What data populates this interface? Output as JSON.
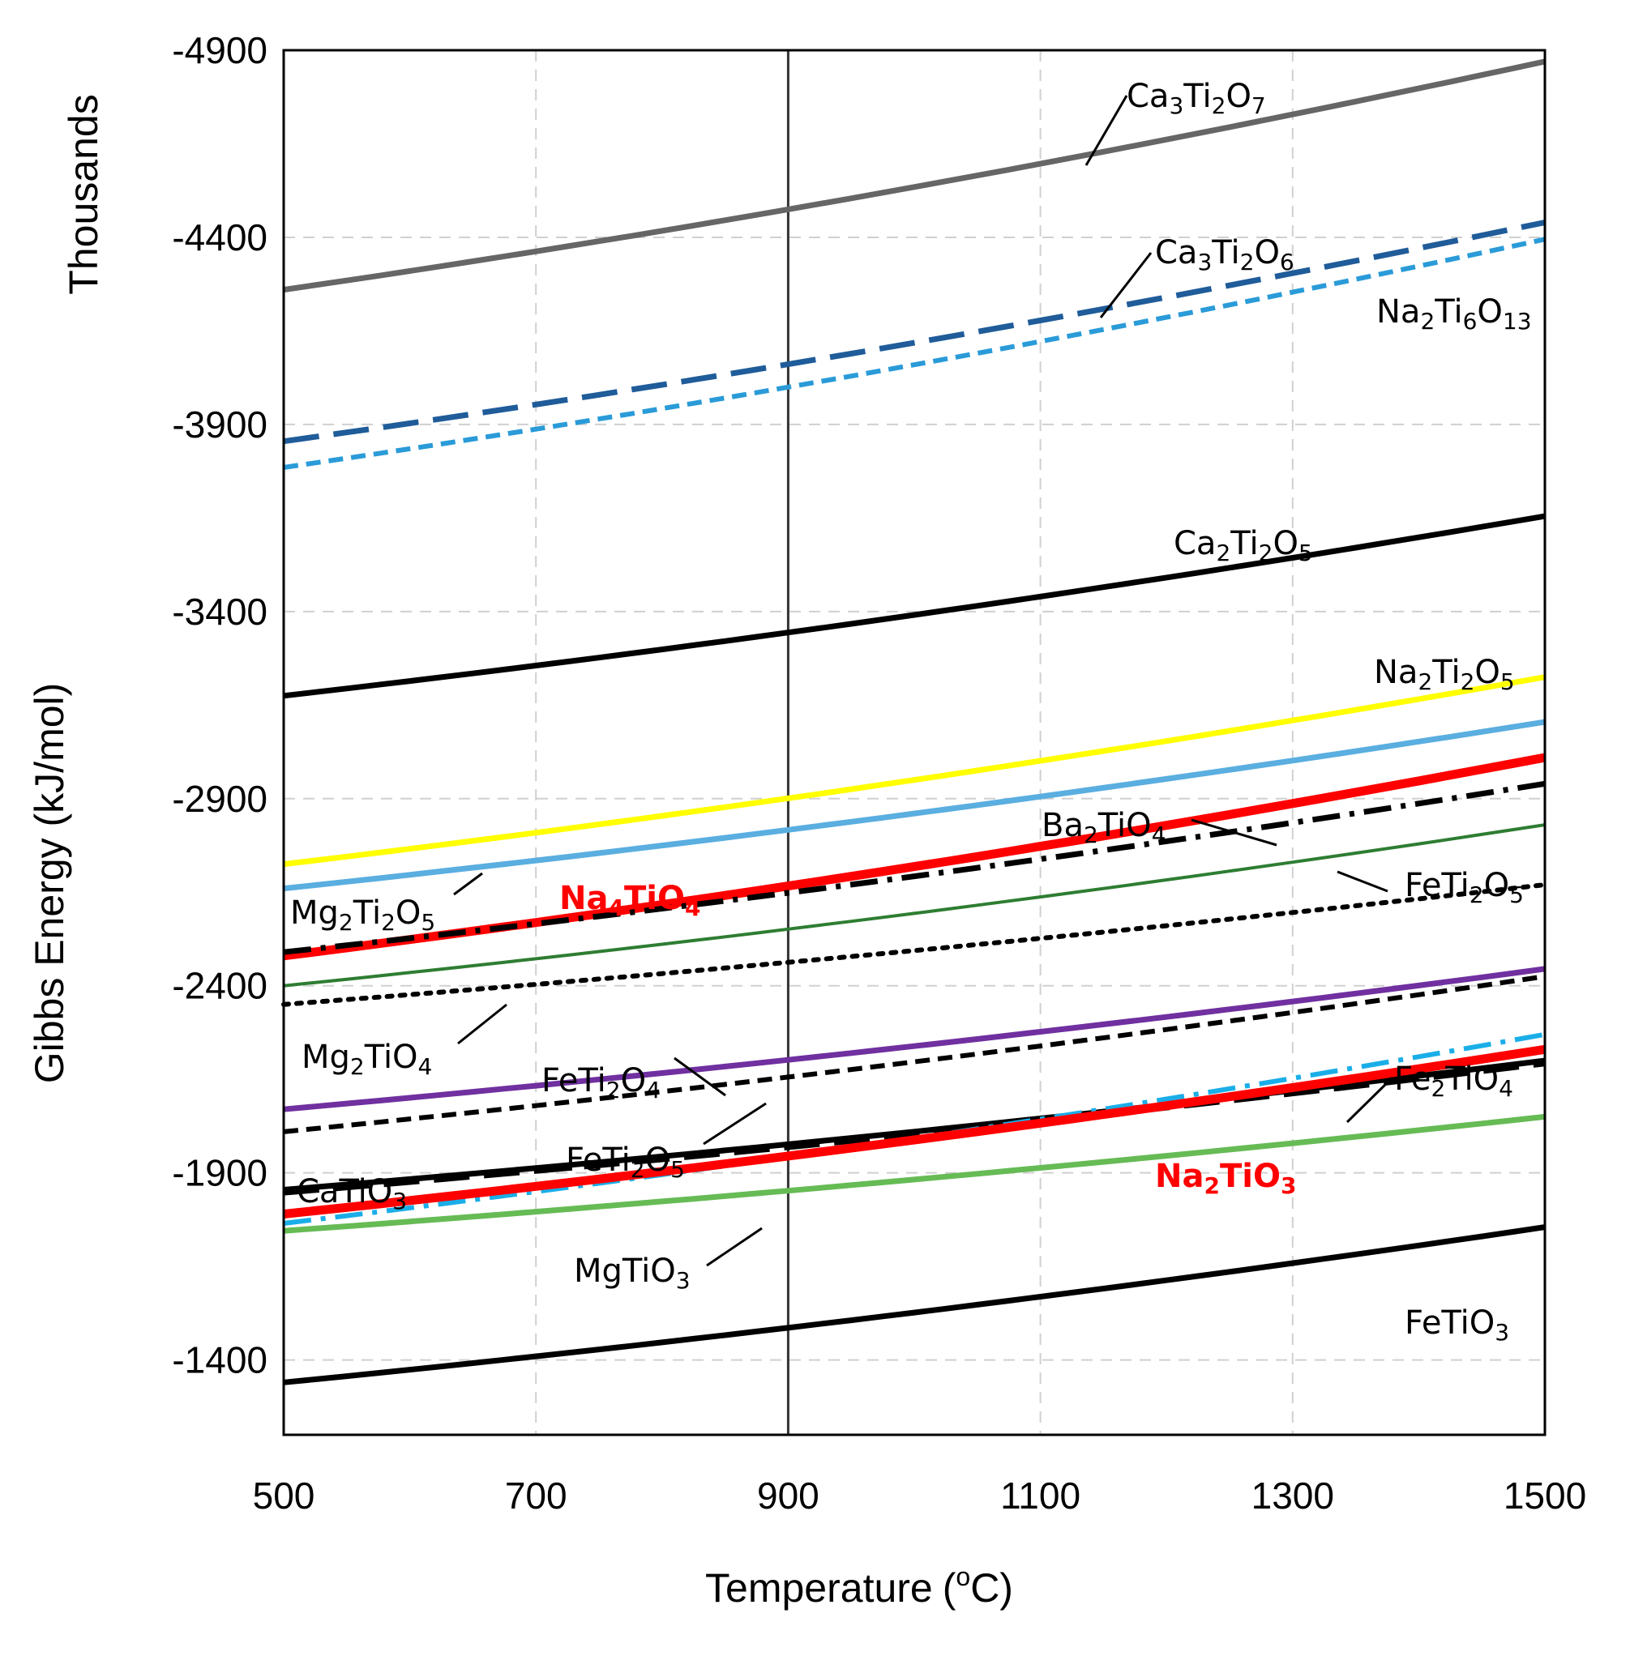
{
  "chart_data": {
    "type": "line",
    "xlabel": "Temperature",
    "xlabel_unit_sup": "o",
    "xlabel_unit": "C",
    "xlabel_open": "(",
    "xlabel_close": ")",
    "ylabel": "Gibbs Energy (kJ/mol)",
    "ylabel_units": "Thousands",
    "xlim": [
      500,
      1500
    ],
    "ylim": [
      -1200,
      -4900
    ],
    "y_axis_inverted": true,
    "x_ticks": [
      500,
      700,
      900,
      1100,
      1300,
      1500
    ],
    "y_ticks": [
      -4900,
      -4400,
      -3900,
      -3400,
      -2900,
      -2400,
      -1900,
      -1400
    ],
    "grid": true,
    "reference_line_x": 900,
    "series": [
      {
        "name": "Ca3Ti2O7",
        "label": [
          [
            "Ca"
          ],
          [
            "3",
            "sub"
          ],
          [
            "Ti"
          ],
          [
            "2",
            "sub"
          ],
          [
            "O"
          ],
          [
            "7",
            "sub"
          ]
        ],
        "color": "#666666",
        "dash": "solid",
        "width": 7,
        "x": [
          500,
          1500
        ],
        "y": [
          -4260,
          -4870
        ],
        "curvature": 0.2
      },
      {
        "name": "Ca3Ti2O6",
        "label": [
          [
            "Ca"
          ],
          [
            "3",
            "sub"
          ],
          [
            "Ti"
          ],
          [
            "2",
            "sub"
          ],
          [
            "O"
          ],
          [
            "6",
            "sub"
          ]
        ],
        "color": "#1f5c99",
        "dash": "long-dash",
        "width": 7,
        "x": [
          500,
          1500
        ],
        "y": [
          -3855,
          -4440
        ],
        "curvature": 0.2
      },
      {
        "name": "Na2Ti6O13",
        "label": [
          [
            "Na"
          ],
          [
            "2",
            "sub"
          ],
          [
            "Ti"
          ],
          [
            "6",
            "sub"
          ],
          [
            "O"
          ],
          [
            "13",
            "sub"
          ]
        ],
        "color": "#2a9bd8",
        "dash": "short-dash",
        "width": 6,
        "x": [
          500,
          1500
        ],
        "y": [
          -3785,
          -4395
        ],
        "curvature": 0.2
      },
      {
        "name": "Ca2Ti2O5",
        "label": [
          [
            "Ca"
          ],
          [
            "2",
            "sub"
          ],
          [
            "Ti"
          ],
          [
            "2",
            "sub"
          ],
          [
            "O"
          ],
          [
            "5",
            "sub"
          ]
        ],
        "color": "#000000",
        "dash": "solid",
        "width": 7,
        "x": [
          500,
          1500
        ],
        "y": [
          -3175,
          -3655
        ],
        "curvature": 0.2
      },
      {
        "name": "Na2Ti2O5",
        "label": [
          [
            "Na"
          ],
          [
            "2",
            "sub"
          ],
          [
            "Ti"
          ],
          [
            "2",
            "sub"
          ],
          [
            "O"
          ],
          [
            "5",
            "sub"
          ]
        ],
        "color": "#ffff00",
        "dash": "solid",
        "width": 7,
        "x": [
          500,
          1500
        ],
        "y": [
          -2725,
          -3225
        ],
        "curvature": 0.2
      },
      {
        "name": "Mg2Ti2O5",
        "label": [
          [
            "Mg"
          ],
          [
            "2",
            "sub"
          ],
          [
            "Ti"
          ],
          [
            "2",
            "sub"
          ],
          [
            "O"
          ],
          [
            "5",
            "sub"
          ]
        ],
        "color": "#5aaee0",
        "dash": "solid",
        "width": 7,
        "x": [
          500,
          1500
        ],
        "y": [
          -2660,
          -3105
        ],
        "curvature": 0.2
      },
      {
        "name": "Na4TiO4",
        "label": [
          [
            "Na"
          ],
          [
            "4",
            "sub"
          ],
          [
            "TiO"
          ],
          [
            "4",
            "sub"
          ]
        ],
        "highlight": true,
        "color": "#ff0000",
        "dash": "solid",
        "width": 11,
        "x": [
          500,
          1500
        ],
        "y": [
          -2480,
          -3010
        ],
        "curvature": 0.2
      },
      {
        "name": "Ba2TiO4",
        "label": [
          [
            "Ba"
          ],
          [
            "2",
            "sub"
          ],
          [
            "TiO"
          ],
          [
            "4",
            "sub"
          ]
        ],
        "color": "#000000",
        "dash": "dash-dot",
        "width": 7,
        "x": [
          500,
          1500
        ],
        "y": [
          -2490,
          -2940
        ],
        "curvature": 0.2
      },
      {
        "name": "FeTi2O5",
        "label": [
          [
            "FeTi"
          ],
          [
            "2",
            "sub"
          ],
          [
            "O"
          ],
          [
            "5",
            "sub"
          ]
        ],
        "color": "#2e7d32",
        "dash": "solid",
        "width": 4,
        "x": [
          500,
          1500
        ],
        "y": [
          -2400,
          -2830
        ],
        "curvature": 0.2
      },
      {
        "name": "Mg2TiO4",
        "label": [
          [
            "Mg"
          ],
          [
            "2",
            "sub"
          ],
          [
            "TiO"
          ],
          [
            "4",
            "sub"
          ]
        ],
        "color": "#000000",
        "dash": "dotted",
        "width": 6,
        "x": [
          500,
          1500
        ],
        "y": [
          -2350,
          -2670
        ],
        "curvature": 0.2
      },
      {
        "name": "FeTi2O4",
        "label": [
          [
            "FeTi"
          ],
          [
            "2",
            "sub"
          ],
          [
            "O"
          ],
          [
            "4",
            "sub"
          ]
        ],
        "color": "#7030a0",
        "dash": "solid",
        "width": 7,
        "x": [
          500,
          1500
        ],
        "y": [
          -2070,
          -2445
        ],
        "curvature": 0.2
      },
      {
        "name": "FeTi2O5 (dashed)",
        "label": [
          [
            "FeTi"
          ],
          [
            "2",
            "sub"
          ],
          [
            "O"
          ],
          [
            "5",
            "sub"
          ]
        ],
        "color": "#000000",
        "dash": "short-dash",
        "width": 6,
        "x": [
          500,
          1500
        ],
        "y": [
          -2010,
          -2425
        ],
        "curvature": 0.2
      },
      {
        "name": "CaTiO3",
        "label": [
          [
            "CaTiO"
          ],
          [
            "3",
            "sub"
          ]
        ],
        "color": "#000000",
        "dash": "solid",
        "width": 7,
        "x": [
          500,
          1500
        ],
        "y": [
          -1855,
          -2200
        ],
        "curvature": 0.2
      },
      {
        "name": "CaTiO3 (dashed)",
        "label": null,
        "color": "#000000",
        "dash": "long-dash",
        "width": 5,
        "x": [
          500,
          1500
        ],
        "y": [
          -1845,
          -2190
        ],
        "curvature": 0.2
      },
      {
        "name": "Fe2TiO4",
        "label": [
          [
            "Fe"
          ],
          [
            "2",
            "sub"
          ],
          [
            "TiO"
          ],
          [
            "4",
            "sub"
          ]
        ],
        "color": "#1aaee8",
        "dash": "dash-dot",
        "width": 6,
        "x": [
          500,
          1500
        ],
        "y": [
          -1765,
          -2270
        ],
        "curvature": 0.2
      },
      {
        "name": "Na2TiO3",
        "label": [
          [
            "Na"
          ],
          [
            "2",
            "sub"
          ],
          [
            "TiO"
          ],
          [
            "3",
            "sub"
          ]
        ],
        "highlight": true,
        "color": "#ff0000",
        "dash": "solid",
        "width": 11,
        "x": [
          500,
          1500
        ],
        "y": [
          -1790,
          -2230
        ],
        "curvature": 0.2
      },
      {
        "name": "MgTiO3",
        "label": [
          [
            "MgTiO"
          ],
          [
            "3",
            "sub"
          ]
        ],
        "color": "#66bb55",
        "dash": "solid",
        "width": 7,
        "x": [
          500,
          1500
        ],
        "y": [
          -1745,
          -2050
        ],
        "curvature": 0.2
      },
      {
        "name": "FeTiO3",
        "label": [
          [
            "FeTiO"
          ],
          [
            "3",
            "sub"
          ]
        ],
        "color": "#000000",
        "dash": "solid",
        "width": 7,
        "x": [
          500,
          1500
        ],
        "y": [
          -1340,
          -1755
        ],
        "curvature": 0.2
      }
    ]
  }
}
